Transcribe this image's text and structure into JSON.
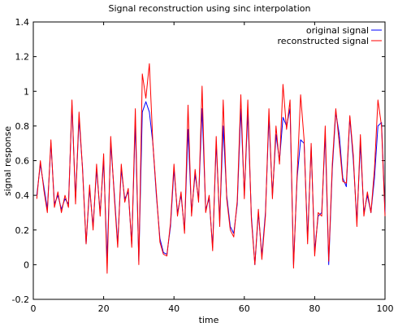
{
  "chart_data": {
    "type": "line",
    "title": "Signal reconstruction using sinc interpolation",
    "xlabel": "time",
    "ylabel": "signal response",
    "xlim": [
      0,
      100
    ],
    "ylim": [
      -0.2,
      1.4
    ],
    "xticks": [
      "0",
      "20",
      "40",
      "60",
      "80",
      "100"
    ],
    "yticks": [
      "-0.2",
      "0",
      "0.2",
      "0.4",
      "0.6",
      "0.8",
      "1",
      "1.2",
      "1.4"
    ],
    "grid": false,
    "legend_position": "top-right",
    "series": [
      {
        "name": "original signal",
        "color": "#0000ff",
        "x": [
          1,
          2,
          3,
          4,
          5,
          6,
          7,
          8,
          9,
          10,
          11,
          12,
          13,
          14,
          15,
          16,
          17,
          18,
          19,
          20,
          21,
          22,
          23,
          24,
          25,
          26,
          27,
          28,
          29,
          30,
          31,
          32,
          33,
          34,
          35,
          36,
          37,
          38,
          39,
          40,
          41,
          42,
          43,
          44,
          45,
          46,
          47,
          48,
          49,
          50,
          51,
          52,
          53,
          54,
          55,
          56,
          57,
          58,
          59,
          60,
          61,
          62,
          63,
          64,
          65,
          66,
          67,
          68,
          69,
          70,
          71,
          72,
          73,
          74,
          75,
          76,
          77,
          78,
          79,
          80,
          81,
          82,
          83,
          84,
          85,
          86,
          87,
          88,
          89,
          90,
          91,
          92,
          93,
          94,
          95,
          96,
          97,
          98,
          99,
          100
        ],
        "values": [
          0.4,
          0.58,
          0.45,
          0.32,
          0.7,
          0.35,
          0.4,
          0.32,
          0.38,
          0.35,
          0.92,
          0.38,
          0.84,
          0.56,
          0.12,
          0.44,
          0.22,
          0.55,
          0.3,
          0.6,
          0.03,
          0.7,
          0.42,
          0.12,
          0.55,
          0.38,
          0.42,
          0.12,
          0.82,
          0.02,
          0.88,
          0.94,
          0.88,
          0.7,
          0.4,
          0.15,
          0.07,
          0.06,
          0.22,
          0.55,
          0.3,
          0.4,
          0.2,
          0.78,
          0.3,
          0.52,
          0.38,
          0.9,
          0.32,
          0.38,
          0.1,
          0.7,
          0.25,
          0.8,
          0.4,
          0.22,
          0.18,
          0.35,
          0.9,
          0.4,
          0.88,
          0.28,
          0.0,
          0.3,
          0.05,
          0.3,
          0.85,
          0.4,
          0.75,
          0.6,
          0.85,
          0.8,
          0.9,
          0.0,
          0.5,
          0.72,
          0.7,
          0.15,
          0.68,
          0.08,
          0.28,
          0.3,
          0.75,
          0.0,
          0.55,
          0.88,
          0.75,
          0.5,
          0.45,
          0.85,
          0.6,
          0.25,
          0.7,
          0.3,
          0.4,
          0.3,
          0.5,
          0.8,
          0.82,
          0.3
        ]
      },
      {
        "name": "reconstructed signal",
        "color": "#ff0000",
        "x": [
          1,
          2,
          3,
          4,
          5,
          6,
          7,
          8,
          9,
          10,
          11,
          12,
          13,
          14,
          15,
          16,
          17,
          18,
          19,
          20,
          21,
          22,
          23,
          24,
          25,
          26,
          27,
          28,
          29,
          30,
          31,
          32,
          33,
          34,
          35,
          36,
          37,
          38,
          39,
          40,
          41,
          42,
          43,
          44,
          45,
          46,
          47,
          48,
          49,
          50,
          51,
          52,
          53,
          54,
          55,
          56,
          57,
          58,
          59,
          60,
          61,
          62,
          63,
          64,
          65,
          66,
          67,
          68,
          69,
          70,
          71,
          72,
          73,
          74,
          75,
          76,
          77,
          78,
          79,
          80,
          81,
          82,
          83,
          84,
          85,
          86,
          87,
          88,
          89,
          90,
          91,
          92,
          93,
          94,
          95,
          96,
          97,
          98,
          99,
          100
        ],
        "values": [
          0.38,
          0.6,
          0.43,
          0.3,
          0.72,
          0.33,
          0.42,
          0.3,
          0.4,
          0.33,
          0.95,
          0.35,
          0.88,
          0.55,
          0.12,
          0.46,
          0.2,
          0.58,
          0.28,
          0.64,
          -0.05,
          0.74,
          0.4,
          0.1,
          0.58,
          0.36,
          0.44,
          0.1,
          0.9,
          0.0,
          1.1,
          0.96,
          1.16,
          0.7,
          0.42,
          0.13,
          0.06,
          0.05,
          0.24,
          0.58,
          0.28,
          0.42,
          0.18,
          0.92,
          0.28,
          0.55,
          0.36,
          1.03,
          0.3,
          0.4,
          0.08,
          0.74,
          0.22,
          0.95,
          0.38,
          0.2,
          0.16,
          0.37,
          0.98,
          0.38,
          0.95,
          0.26,
          0.0,
          0.32,
          0.03,
          0.28,
          0.9,
          0.38,
          0.8,
          0.58,
          1.04,
          0.78,
          0.95,
          -0.02,
          0.52,
          0.98,
          0.72,
          0.12,
          0.7,
          0.05,
          0.3,
          0.28,
          0.8,
          0.02,
          0.58,
          0.9,
          0.7,
          0.48,
          0.47,
          0.86,
          0.63,
          0.22,
          0.75,
          0.28,
          0.42,
          0.3,
          0.55,
          0.95,
          0.8,
          0.28
        ]
      }
    ]
  }
}
